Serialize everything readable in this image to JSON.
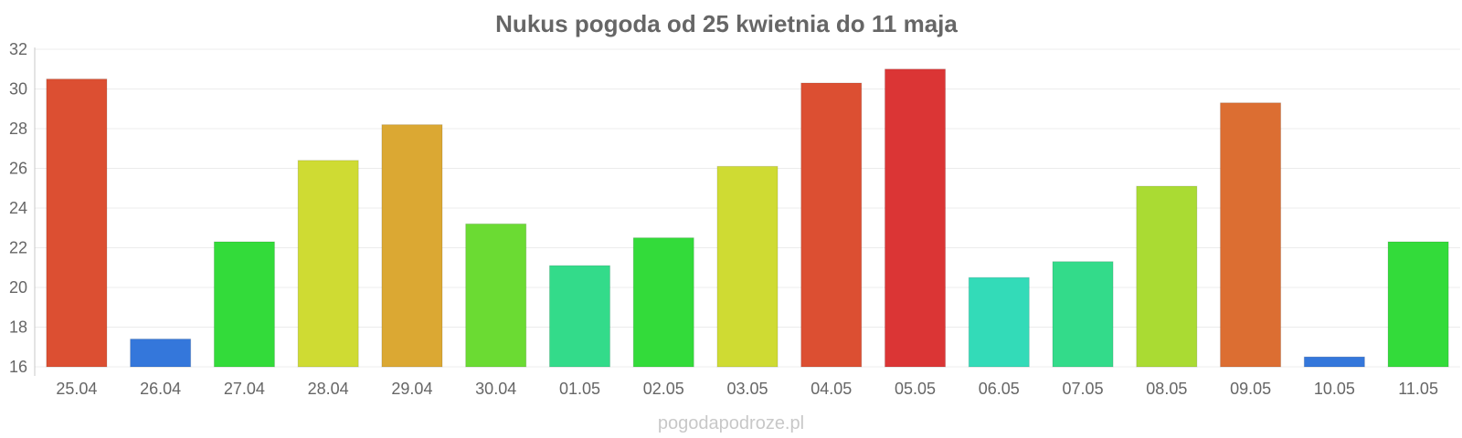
{
  "chart_data": {
    "type": "bar",
    "title": "Nukus pogoda od 25 kwietnia do 11 maja",
    "xlabel": "",
    "ylabel": "",
    "categories": [
      "25.04",
      "26.04",
      "27.04",
      "28.04",
      "29.04",
      "30.04",
      "01.05",
      "02.05",
      "03.05",
      "04.05",
      "05.05",
      "06.05",
      "07.05",
      "08.05",
      "09.05",
      "10.05",
      "11.05"
    ],
    "values": [
      30.5,
      17.4,
      22.3,
      26.4,
      28.2,
      23.2,
      21.1,
      22.5,
      26.1,
      30.3,
      31.0,
      20.5,
      21.3,
      25.1,
      29.3,
      16.5,
      22.3
    ],
    "colors": [
      "#dc4f32",
      "#3477db",
      "#33db3a",
      "#cfdb33",
      "#dba833",
      "#6bdb33",
      "#33db8a",
      "#33db3a",
      "#cfdb33",
      "#dc4f32",
      "#db3535",
      "#33dbb8",
      "#33db8a",
      "#aadb33",
      "#dc6e32",
      "#3477db",
      "#33db3a"
    ],
    "ylim": [
      16,
      32
    ],
    "yticks": [
      16,
      18,
      20,
      22,
      24,
      26,
      28,
      30,
      32
    ],
    "grid": true,
    "legend": "none"
  },
  "footer": {
    "watermark": "pogodapodroze.pl"
  }
}
